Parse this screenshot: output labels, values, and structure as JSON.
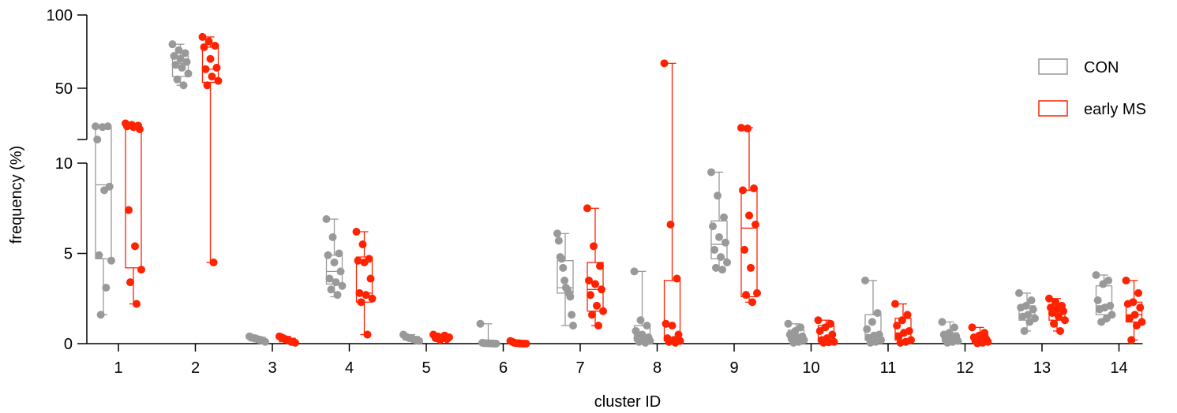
{
  "chart_data": {
    "type": "box-and-whisker with points",
    "title": "",
    "xlabel": "cluster ID",
    "ylabel": "frequency (%)",
    "y_axis": {
      "segmented": true,
      "lower_segment": {
        "range": [
          0,
          10
        ],
        "ticks": [
          "0",
          "5",
          "10"
        ]
      },
      "upper_segment": {
        "range": [
          15,
          100
        ],
        "ticks": [
          "50",
          "100"
        ]
      }
    },
    "categories": [
      "1",
      "2",
      "3",
      "4",
      "5",
      "6",
      "7",
      "8",
      "9",
      "10",
      "11",
      "12",
      "13",
      "14"
    ],
    "legend": {
      "position": "right",
      "entries": [
        "CON",
        "early MS"
      ]
    },
    "series": [
      {
        "name": "CON",
        "color": "#999999",
        "boxes": [
          {
            "min": 1.6,
            "q1": 4.7,
            "median": 8.8,
            "q3": 23,
            "max": 24,
            "points": [
              24,
              24,
              23.5,
              10.8,
              8.7,
              8.5,
              4.9,
              4.6,
              3.1,
              1.6
            ]
          },
          {
            "min": 52,
            "q1": 58,
            "median": 67,
            "q3": 72,
            "max": 80,
            "points": [
              80,
              76,
              74,
              72,
              70,
              68,
              66,
              64,
              60,
              56,
              52
            ]
          },
          {
            "min": 0.1,
            "q1": 0.15,
            "median": 0.25,
            "q3": 0.35,
            "max": 0.4,
            "points": [
              0.4,
              0.35,
              0.3,
              0.3,
              0.25,
              0.2,
              0.2,
              0.15,
              0.1
            ]
          },
          {
            "min": 2.6,
            "q1": 3.3,
            "median": 4.0,
            "q3": 4.9,
            "max": 6.9,
            "points": [
              6.9,
              5.9,
              5.0,
              4.9,
              4.5,
              4.0,
              3.6,
              3.4,
              3.2,
              3.0,
              2.7
            ]
          },
          {
            "min": 0.15,
            "q1": 0.2,
            "median": 0.3,
            "q3": 0.4,
            "max": 0.5,
            "points": [
              0.5,
              0.4,
              0.35,
              0.3,
              0.3,
              0.25,
              0.2,
              0.2,
              0.15
            ]
          },
          {
            "min": 0,
            "q1": 0,
            "median": 0.02,
            "q3": 0.05,
            "max": 1.1,
            "points": [
              1.1,
              0.05,
              0.03,
              0.02,
              0.02,
              0.01,
              0.01,
              0,
              0
            ]
          },
          {
            "min": 1.0,
            "q1": 2.8,
            "median": 3.1,
            "q3": 4.6,
            "max": 6.1,
            "points": [
              6.1,
              5.7,
              4.8,
              4.7,
              4.2,
              3.5,
              3.1,
              3.0,
              2.8,
              2.6,
              1.6,
              1.0
            ]
          },
          {
            "min": 0.05,
            "q1": 0.15,
            "median": 0.3,
            "q3": 1.0,
            "max": 4.0,
            "points": [
              4.0,
              1.3,
              1.0,
              0.7,
              0.5,
              0.35,
              0.3,
              0.2,
              0.15,
              0.1,
              0.05
            ]
          },
          {
            "min": 4.1,
            "q1": 4.7,
            "median": 5.5,
            "q3": 6.8,
            "max": 9.5,
            "points": [
              9.5,
              8.2,
              7.0,
              6.5,
              5.9,
              5.6,
              5.2,
              4.8,
              4.5,
              4.2,
              4.1
            ]
          },
          {
            "min": 0.05,
            "q1": 0.2,
            "median": 0.35,
            "q3": 0.75,
            "max": 1.1,
            "points": [
              1.1,
              0.9,
              0.7,
              0.5,
              0.4,
              0.35,
              0.25,
              0.2,
              0.1,
              0.05
            ]
          },
          {
            "min": 0.05,
            "q1": 0.2,
            "median": 0.5,
            "q3": 1.6,
            "max": 3.5,
            "points": [
              3.5,
              1.7,
              1.2,
              0.8,
              0.5,
              0.45,
              0.3,
              0.2,
              0.1,
              0.05
            ]
          },
          {
            "min": 0.05,
            "q1": 0.15,
            "median": 0.35,
            "q3": 0.6,
            "max": 1.2,
            "points": [
              1.2,
              0.9,
              0.6,
              0.5,
              0.4,
              0.3,
              0.2,
              0.15,
              0.1,
              0.05
            ]
          },
          {
            "min": 0.7,
            "q1": 1.3,
            "median": 1.6,
            "q3": 2.1,
            "max": 2.8,
            "points": [
              2.8,
              2.4,
              2.1,
              2.0,
              1.9,
              1.6,
              1.5,
              1.4,
              1.2,
              0.7
            ]
          },
          {
            "min": 1.2,
            "q1": 1.6,
            "median": 2.1,
            "q3": 3.2,
            "max": 3.8,
            "points": [
              3.8,
              3.5,
              3.3,
              2.4,
              2.1,
              2.0,
              1.9,
              1.6,
              1.4,
              1.2
            ]
          }
        ]
      },
      {
        "name": "early MS",
        "color": "#ff2200",
        "boxes": [
          {
            "min": 2.2,
            "q1": 4.2,
            "median": 23,
            "q3": 24,
            "max": 26,
            "points": [
              26,
              25,
              24.5,
              24,
              23.5,
              22,
              7.4,
              5.4,
              4.1,
              3.4,
              2.2
            ]
          },
          {
            "min": 4.5,
            "q1": 54,
            "median": 63,
            "q3": 78,
            "max": 85,
            "points": [
              85,
              82,
              79,
              78,
              70,
              64,
              63,
              58,
              55,
              52,
              4.5
            ]
          },
          {
            "min": 0.05,
            "q1": 0.1,
            "median": 0.2,
            "q3": 0.3,
            "max": 0.4,
            "points": [
              0.4,
              0.35,
              0.3,
              0.25,
              0.2,
              0.15,
              0.1,
              0.1,
              0.05
            ]
          },
          {
            "min": 0.5,
            "q1": 2.3,
            "median": 2.8,
            "q3": 4.8,
            "max": 6.2,
            "points": [
              6.2,
              5.5,
              4.7,
              4.6,
              4.5,
              3.6,
              2.8,
              2.7,
              2.5,
              2.3,
              0.5
            ]
          },
          {
            "min": 0.2,
            "q1": 0.25,
            "median": 0.3,
            "q3": 0.4,
            "max": 0.5,
            "points": [
              0.5,
              0.45,
              0.4,
              0.35,
              0.3,
              0.3,
              0.25,
              0.2
            ]
          },
          {
            "min": 0,
            "q1": 0,
            "median": 0.01,
            "q3": 0.05,
            "max": 0.15,
            "points": [
              0.15,
              0.1,
              0.05,
              0.03,
              0.02,
              0.01,
              0,
              0,
              0
            ]
          },
          {
            "min": 1.0,
            "q1": 1.8,
            "median": 3.0,
            "q3": 4.5,
            "max": 7.5,
            "points": [
              7.5,
              5.4,
              4.3,
              3.5,
              3.3,
              3.0,
              2.7,
              2.1,
              1.8,
              1.6,
              1.0
            ]
          },
          {
            "min": 0.05,
            "q1": 0.15,
            "median": 0.3,
            "q3": 3.5,
            "max": 67,
            "points": [
              67,
              6.6,
              3.6,
              1.1,
              1.0,
              0.5,
              0.3,
              0.2,
              0.15,
              0.1,
              0.05
            ]
          },
          {
            "min": 2.3,
            "q1": 2.6,
            "median": 6.4,
            "q3": 8.5,
            "max": 23,
            "points": [
              23,
              22.5,
              8.6,
              8.5,
              7.1,
              6.6,
              5.2,
              4.2,
              2.8,
              2.7,
              2.3
            ]
          },
          {
            "min": 0.05,
            "q1": 0.1,
            "median": 0.3,
            "q3": 1.0,
            "max": 1.3,
            "points": [
              1.3,
              1.1,
              0.9,
              0.7,
              0.5,
              0.3,
              0.2,
              0.1,
              0.08,
              0.05
            ]
          },
          {
            "min": 0.05,
            "q1": 0.2,
            "median": 0.6,
            "q3": 1.4,
            "max": 2.2,
            "points": [
              2.2,
              1.6,
              1.3,
              1.0,
              0.7,
              0.6,
              0.4,
              0.2,
              0.1,
              0.05
            ]
          },
          {
            "min": 0.02,
            "q1": 0.05,
            "median": 0.2,
            "q3": 0.5,
            "max": 0.9,
            "points": [
              0.9,
              0.6,
              0.45,
              0.35,
              0.25,
              0.2,
              0.15,
              0.1,
              0.05,
              0.02
            ]
          },
          {
            "min": 0.7,
            "q1": 1.3,
            "median": 1.8,
            "q3": 2.0,
            "max": 2.5,
            "points": [
              2.5,
              2.3,
              2.1,
              2.0,
              1.9,
              1.8,
              1.7,
              1.5,
              1.3,
              1.1,
              0.7
            ]
          },
          {
            "min": 0.2,
            "q1": 1.2,
            "median": 1.6,
            "q3": 2.3,
            "max": 3.5,
            "points": [
              3.5,
              2.8,
              2.3,
              2.2,
              2.0,
              1.6,
              1.4,
              1.2,
              1.0,
              0.2
            ]
          }
        ]
      }
    ]
  }
}
